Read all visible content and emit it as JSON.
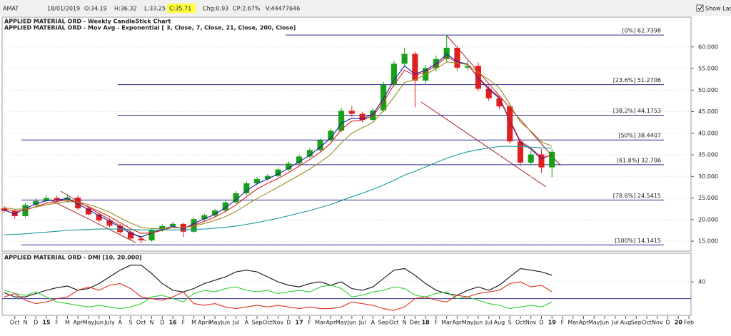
{
  "toolbar": {
    "symbol": "AMAT",
    "date": "18/01/2019",
    "open": "O:34.19",
    "high": "H:36.32",
    "low": "L:33.25",
    "close": "C:35.71",
    "change": "Chg:0.93",
    "change_pct": "CP:2.67%",
    "volume": "V:44477646",
    "show_last": "Show Last"
  },
  "chart_data": [
    {
      "type": "candlestick",
      "title": "APPLIED MATERIAL ORD - Weekly CandleStick Chart",
      "ma_legend_prefix": "APPLIED MATERIAL ORD - Mov Avg - Exponential [",
      "ma_legend_suffix": "]",
      "x": [
        0,
        1,
        2,
        3,
        4,
        5,
        6,
        7,
        8,
        9,
        10,
        11,
        12,
        13,
        14,
        15,
        16,
        17,
        18,
        19,
        20,
        21,
        22,
        23,
        24,
        25,
        26,
        27,
        28,
        29,
        30,
        31,
        32,
        33,
        34,
        35,
        36,
        37,
        38,
        39,
        40,
        41,
        42,
        43,
        44,
        45,
        46,
        47,
        48,
        49,
        50,
        51,
        52
      ],
      "open": [
        22.6,
        22.0,
        20.8,
        23.4,
        24.3,
        25.0,
        24.4,
        25.1,
        22.6,
        21.2,
        19.8,
        18.6,
        17.1,
        15.6,
        15.2,
        17.6,
        18.5,
        19.0,
        17.2,
        20.1,
        21.0,
        22.1,
        24.0,
        26.1,
        28.4,
        29.4,
        30.1,
        31.6,
        33.0,
        34.6,
        36.1,
        38.4,
        40.6,
        45.2,
        44.5,
        43.1,
        45.3,
        51.2,
        56.1,
        58.4,
        52.2,
        55.1,
        57.2,
        59.8,
        55.2,
        55.6,
        50.3,
        48.1,
        46.2,
        38.1,
        33.2,
        35.1,
        32.1
      ],
      "high": [
        23.1,
        22.4,
        23.9,
        24.9,
        25.6,
        25.5,
        25.8,
        25.6,
        23.1,
        21.6,
        20.3,
        19.0,
        17.5,
        16.1,
        17.9,
        18.9,
        19.5,
        19.3,
        20.5,
        21.4,
        22.5,
        24.4,
        26.6,
        28.9,
        29.9,
        30.6,
        32.1,
        33.5,
        35.1,
        36.6,
        38.9,
        41.1,
        45.9,
        46.3,
        45.0,
        45.9,
        51.9,
        56.8,
        59.8,
        58.9,
        55.8,
        58.0,
        62.74,
        60.3,
        56.8,
        56.4,
        51.0,
        48.8,
        46.8,
        38.7,
        36.0,
        36.3,
        36.32
      ],
      "low": [
        21.5,
        20.2,
        20.5,
        23.0,
        23.9,
        24.0,
        24.0,
        22.2,
        21.0,
        19.4,
        18.2,
        16.7,
        15.2,
        14.5,
        14.9,
        17.2,
        18.1,
        16.0,
        16.9,
        19.7,
        20.6,
        21.7,
        23.6,
        25.7,
        28.0,
        28.9,
        29.7,
        31.2,
        32.6,
        34.2,
        35.7,
        38.0,
        40.2,
        43.8,
        42.5,
        42.7,
        44.9,
        50.8,
        55.5,
        46.0,
        51.5,
        54.3,
        56.5,
        54.5,
        54.6,
        49.8,
        47.5,
        45.6,
        37.6,
        32.5,
        32.6,
        30.8,
        29.8
      ],
      "close": [
        22.0,
        20.8,
        23.4,
        24.3,
        25.0,
        24.4,
        25.1,
        22.6,
        21.2,
        19.8,
        18.6,
        17.1,
        15.6,
        15.2,
        17.6,
        18.5,
        19.0,
        17.2,
        20.1,
        21.0,
        22.1,
        24.0,
        26.1,
        28.4,
        29.4,
        30.1,
        31.6,
        33.0,
        34.6,
        36.1,
        38.4,
        40.6,
        45.2,
        44.5,
        43.1,
        45.3,
        51.2,
        56.1,
        58.4,
        52.2,
        55.1,
        57.2,
        59.8,
        55.2,
        55.6,
        50.3,
        48.1,
        46.2,
        38.1,
        33.2,
        35.1,
        32.1,
        35.71
      ],
      "up_color": "#18a018",
      "down_color": "#e02020",
      "series": [
        {
          "name": "3, Close,",
          "color": "#1a1aa8",
          "values": [
            22.2,
            21.3,
            22.6,
            23.6,
            24.4,
            24.5,
            24.9,
            23.6,
            22.3,
            20.9,
            19.6,
            18.2,
            16.8,
            16.0,
            16.9,
            17.8,
            18.5,
            17.8,
            19.1,
            20.2,
            21.2,
            22.8,
            24.6,
            26.7,
            28.3,
            29.4,
            30.6,
            31.9,
            33.4,
            34.9,
            36.8,
            38.9,
            42.3,
            43.5,
            43.3,
            44.4,
            48.0,
            52.3,
            55.6,
            53.7,
            54.6,
            56.1,
            58.3,
            56.6,
            56.0,
            52.8,
            50.2,
            48.1,
            42.9,
            37.8,
            36.3,
            34.1,
            35.0
          ]
        },
        {
          "name": "7, Close,",
          "color": "#e02020",
          "values": [
            22.5,
            21.9,
            22.2,
            23.0,
            23.8,
            24.2,
            24.6,
            24.0,
            23.0,
            21.9,
            20.7,
            19.3,
            17.9,
            16.8,
            16.9,
            17.5,
            18.2,
            18.0,
            18.7,
            19.6,
            20.6,
            21.9,
            23.4,
            25.3,
            27.1,
            28.4,
            29.5,
            30.9,
            32.4,
            33.9,
            35.6,
            37.7,
            40.9,
            42.8,
            43.0,
            44.0,
            47.2,
            51.2,
            54.6,
            53.4,
            54.2,
            55.7,
            57.7,
            56.4,
            55.9,
            53.0,
            50.5,
            48.3,
            43.1,
            38.1,
            36.6,
            34.3,
            34.9
          ]
        },
        {
          "name": "21, Close,",
          "color": "#a08a20",
          "values": [
            22.8,
            22.4,
            22.5,
            22.9,
            23.4,
            23.8,
            24.2,
            24.0,
            23.5,
            22.7,
            21.7,
            20.4,
            19.2,
            18.2,
            17.9,
            17.9,
            18.1,
            18.1,
            18.5,
            19.1,
            19.8,
            20.7,
            21.9,
            23.4,
            24.9,
            26.2,
            27.5,
            28.9,
            30.3,
            31.7,
            33.3,
            35.1,
            37.8,
            40.0,
            41.3,
            42.5,
            45.2,
            48.4,
            51.8,
            52.4,
            53.6,
            55.0,
            56.5,
            56.3,
            55.9,
            54.1,
            52.4,
            50.5,
            46.7,
            42.6,
            40.5,
            38.0,
            37.0
          ]
        },
        {
          "name": "200, Close",
          "color": "#1a9a9a",
          "values": [
            16.5,
            16.6,
            16.7,
            16.9,
            17.1,
            17.3,
            17.5,
            17.6,
            17.7,
            17.8,
            17.8,
            17.8,
            17.7,
            17.6,
            17.6,
            17.6,
            17.6,
            17.6,
            17.7,
            17.8,
            18.0,
            18.2,
            18.5,
            18.9,
            19.3,
            19.8,
            20.3,
            20.9,
            21.5,
            22.1,
            22.8,
            23.5,
            24.4,
            25.3,
            26.1,
            27.0,
            28.0,
            29.1,
            30.3,
            31.2,
            32.2,
            33.2,
            34.2,
            35.0,
            35.7,
            36.2,
            36.6,
            36.9,
            37.0,
            36.9,
            36.8,
            36.6,
            36.6
          ]
        }
      ],
      "fib_levels": [
        {
          "value": 62.7398,
          "label": "[0%] 62.7398"
        },
        {
          "value": 51.2706,
          "label": "[23.6%] 51.2706"
        },
        {
          "value": 44.1753,
          "label": "[38.2%] 44.1753"
        },
        {
          "value": 38.4407,
          "label": "[50%] 38.4407"
        },
        {
          "value": 32.706,
          "label": "[61.8%] 32.706"
        },
        {
          "value": 24.5415,
          "label": "[78.6%] 24.5415"
        },
        {
          "value": 14.1415,
          "label": "[100%] 14.1415"
        }
      ],
      "fib_color": "#2a2a90",
      "xlim": [
        -0.2,
        65.2
      ],
      "xticks": [
        {
          "value": 1,
          "label": "Oct"
        },
        {
          "value": 2,
          "label": "N"
        },
        {
          "value": 3,
          "label": "D"
        },
        {
          "value": 4,
          "label": "15"
        },
        {
          "value": 5,
          "label": "F"
        },
        {
          "value": 6,
          "label": "M"
        },
        {
          "value": 7,
          "label": "Apr"
        },
        {
          "value": 8,
          "label": "May"
        },
        {
          "value": 9,
          "label": "Jun"
        },
        {
          "value": 10,
          "label": "July"
        },
        {
          "value": 11,
          "label": "A"
        },
        {
          "value": 12,
          "label": "S"
        },
        {
          "value": 13,
          "label": "Oct"
        },
        {
          "value": 14,
          "label": "N"
        },
        {
          "value": 15,
          "label": "D"
        },
        {
          "value": 16,
          "label": "16"
        },
        {
          "value": 17,
          "label": "F"
        },
        {
          "value": 18,
          "label": "M"
        },
        {
          "value": 19,
          "label": "April"
        },
        {
          "value": 20,
          "label": "May"
        },
        {
          "value": 21,
          "label": "Jun"
        },
        {
          "value": 22,
          "label": "Jul"
        },
        {
          "value": 23,
          "label": "A"
        },
        {
          "value": 24,
          "label": "Sep"
        },
        {
          "value": 25,
          "label": "Oct"
        },
        {
          "value": 26,
          "label": "Nov"
        },
        {
          "value": 27,
          "label": "D"
        },
        {
          "value": 28,
          "label": "17"
        },
        {
          "value": 29,
          "label": "F"
        },
        {
          "value": 30,
          "label": "Mar"
        },
        {
          "value": 31,
          "label": "Apr"
        },
        {
          "value": 32,
          "label": "May"
        },
        {
          "value": 33,
          "label": "Jun"
        },
        {
          "value": 34,
          "label": "Jul"
        },
        {
          "value": 35,
          "label": "A"
        },
        {
          "value": 36,
          "label": "Sep"
        },
        {
          "value": 37,
          "label": "Oct"
        },
        {
          "value": 38,
          "label": "N"
        },
        {
          "value": 39,
          "label": "Dec"
        },
        {
          "value": 40,
          "label": "18"
        },
        {
          "value": 41,
          "label": "F"
        },
        {
          "value": 42,
          "label": "Mar"
        },
        {
          "value": 43,
          "label": "Apr"
        },
        {
          "value": 44,
          "label": "May"
        },
        {
          "value": 45,
          "label": "Jun"
        },
        {
          "value": 46,
          "label": "Jul"
        },
        {
          "value": 47,
          "label": "Aug"
        },
        {
          "value": 48,
          "label": "S"
        },
        {
          "value": 49,
          "label": "Oct"
        },
        {
          "value": 50,
          "label": "Nov"
        },
        {
          "value": 51,
          "label": "D"
        },
        {
          "value": 52,
          "label": "19"
        },
        {
          "value": 53,
          "label": "F"
        },
        {
          "value": 54,
          "label": "Mar"
        },
        {
          "value": 55,
          "label": "Apr"
        },
        {
          "value": 56,
          "label": "May"
        },
        {
          "value": 57,
          "label": "Jun"
        },
        {
          "value": 58,
          "label": "Jul"
        },
        {
          "value": 59,
          "label": "Aug"
        },
        {
          "value": 60,
          "label": "Sep"
        },
        {
          "value": 61,
          "label": "Oct"
        },
        {
          "value": 62,
          "label": "Nov"
        },
        {
          "value": 63,
          "label": "D"
        },
        {
          "value": 64,
          "label": "20"
        },
        {
          "value": 65,
          "label": "Feb"
        }
      ],
      "ylim": [
        12.7,
        66.9
      ],
      "yticks": [
        {
          "value": 15,
          "label": "15.000"
        },
        {
          "value": 20,
          "label": "20.000"
        },
        {
          "value": 25,
          "label": "25.000"
        },
        {
          "value": 30,
          "label": "30.000"
        },
        {
          "value": 35,
          "label": "35.000"
        },
        {
          "value": 40,
          "label": "40.000"
        },
        {
          "value": 45,
          "label": "45.000"
        },
        {
          "value": 50,
          "label": "50.000"
        },
        {
          "value": 55,
          "label": "55.000"
        },
        {
          "value": 60,
          "label": "60.000"
        }
      ],
      "grid": true
    },
    {
      "type": "line",
      "title": "APPLIED MATERIAL ORD - DMI [10, 20.000]",
      "x": [
        0,
        1,
        2,
        3,
        4,
        5,
        6,
        7,
        8,
        9,
        10,
        11,
        12,
        13,
        14,
        15,
        16,
        17,
        18,
        19,
        20,
        21,
        22,
        23,
        24,
        25,
        26,
        27,
        28,
        29,
        30,
        31,
        32,
        33,
        34,
        35,
        36,
        37,
        38,
        39,
        40,
        41,
        42,
        43,
        44,
        45,
        46,
        47,
        48,
        49,
        50,
        51,
        52
      ],
      "series": [
        {
          "color": "#111111",
          "values": [
            27,
            22,
            22,
            26,
            30,
            33,
            35,
            30,
            32,
            38,
            46,
            54,
            60,
            60,
            50,
            38,
            30,
            28,
            32,
            38,
            42,
            46,
            52,
            54,
            52,
            46,
            40,
            36,
            34,
            38,
            40,
            36,
            40,
            32,
            30,
            34,
            44,
            54,
            56,
            48,
            38,
            30,
            26,
            24,
            30,
            34,
            30,
            36,
            46,
            56,
            54,
            52,
            48
          ]
        },
        {
          "color": "#30d030",
          "values": [
            30,
            26,
            24,
            28,
            22,
            16,
            14,
            12,
            10,
            12,
            10,
            8,
            10,
            14,
            22,
            24,
            20,
            16,
            26,
            30,
            28,
            32,
            34,
            30,
            28,
            30,
            26,
            28,
            30,
            28,
            34,
            36,
            32,
            22,
            24,
            28,
            30,
            34,
            32,
            24,
            22,
            26,
            28,
            20,
            22,
            18,
            14,
            12,
            8,
            10,
            12,
            10,
            16
          ]
        },
        {
          "color": "#e03020",
          "values": [
            22,
            26,
            18,
            14,
            16,
            20,
            22,
            30,
            34,
            30,
            36,
            38,
            32,
            22,
            20,
            18,
            22,
            28,
            14,
            12,
            14,
            10,
            8,
            10,
            12,
            10,
            12,
            10,
            8,
            10,
            8,
            8,
            10,
            16,
            14,
            12,
            8,
            6,
            10,
            20,
            22,
            18,
            16,
            24,
            22,
            26,
            28,
            30,
            38,
            40,
            34,
            36,
            28
          ]
        }
      ],
      "hline": 20,
      "hline_color": "#2a2a90",
      "xlim": [
        -0.2,
        65.2
      ],
      "ylim": [
        0,
        70
      ],
      "yticks": [
        40
      ],
      "grid": true
    }
  ]
}
